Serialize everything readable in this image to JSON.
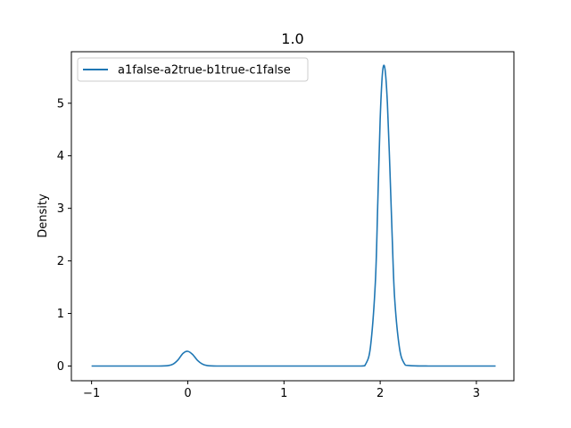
{
  "chart_data": {
    "type": "line",
    "title": "1.0",
    "xlabel": "",
    "ylabel": "Density",
    "xlim": [
      -1.21,
      3.39
    ],
    "ylim": [
      -0.28,
      5.98
    ],
    "xticks": [
      -1,
      0,
      1,
      2,
      3
    ],
    "xtick_labels": [
      "−1",
      "0",
      "1",
      "2",
      "3"
    ],
    "yticks": [
      0,
      1,
      2,
      3,
      4,
      5
    ],
    "ytick_labels": [
      "0",
      "1",
      "2",
      "3",
      "4",
      "5"
    ],
    "grid": false,
    "legend_position": "upper-left",
    "series": [
      {
        "name": "a1false-a2true-b1true-c1false",
        "color": "#1f77b4",
        "x": [
          -1.0,
          -0.6,
          -0.3,
          -0.2,
          -0.15,
          -0.1,
          -0.05,
          0.0,
          0.05,
          0.1,
          0.15,
          0.2,
          0.3,
          0.6,
          1.0,
          1.5,
          1.8,
          1.85,
          1.9,
          1.95,
          1.975,
          2.0,
          2.025,
          2.05,
          2.075,
          2.1,
          2.125,
          2.15,
          2.2,
          2.25,
          2.3,
          2.5,
          3.0,
          3.2
        ],
        "y": [
          0.0,
          0.0,
          0.0,
          0.01,
          0.04,
          0.12,
          0.24,
          0.28,
          0.22,
          0.11,
          0.04,
          0.01,
          0.0,
          0.0,
          0.0,
          0.0,
          0.0,
          0.04,
          0.38,
          1.6,
          3.1,
          4.7,
          5.6,
          5.65,
          5.0,
          3.8,
          2.45,
          1.3,
          0.35,
          0.05,
          0.01,
          0.0,
          0.0,
          0.0
        ]
      }
    ]
  }
}
